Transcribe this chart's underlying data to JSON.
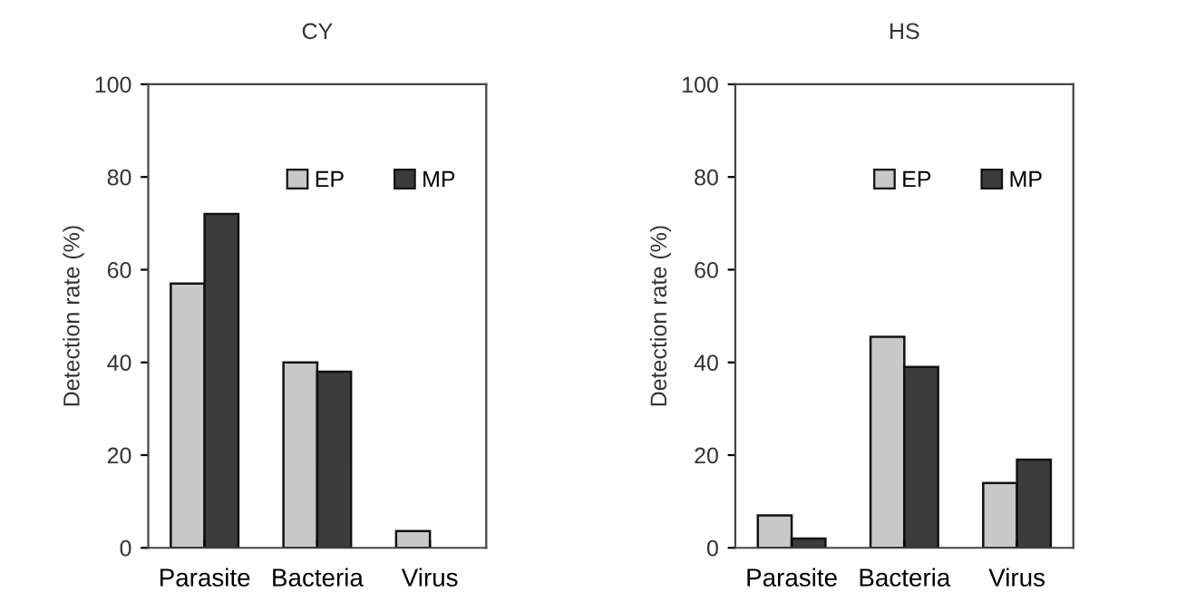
{
  "chart_data": [
    {
      "type": "bar",
      "title": "CY",
      "ylabel": "Detection rate (%)",
      "categories": [
        "Parasite",
        "Bacteria",
        "Virus"
      ],
      "ylim": [
        0,
        100
      ],
      "yticks": [
        0,
        20,
        40,
        60,
        80,
        100
      ],
      "legend": "top right",
      "grid": false,
      "series": [
        {
          "name": "EP",
          "color": "#c8c8c8",
          "values": [
            57,
            40,
            3.6
          ]
        },
        {
          "name": "MP",
          "color": "#3c3c3c",
          "values": [
            72,
            38,
            null
          ]
        }
      ]
    },
    {
      "type": "bar",
      "title": "HS",
      "ylabel": "Detection rate (%)",
      "categories": [
        "Parasite",
        "Bacteria",
        "Virus"
      ],
      "ylim": [
        0,
        100
      ],
      "yticks": [
        0,
        20,
        40,
        60,
        80,
        100
      ],
      "legend": "top right",
      "grid": false,
      "series": [
        {
          "name": "EP",
          "color": "#c8c8c8",
          "values": [
            7,
            45.5,
            14
          ]
        },
        {
          "name": "MP",
          "color": "#3c3c3c",
          "values": [
            2,
            39,
            19
          ]
        }
      ]
    }
  ]
}
